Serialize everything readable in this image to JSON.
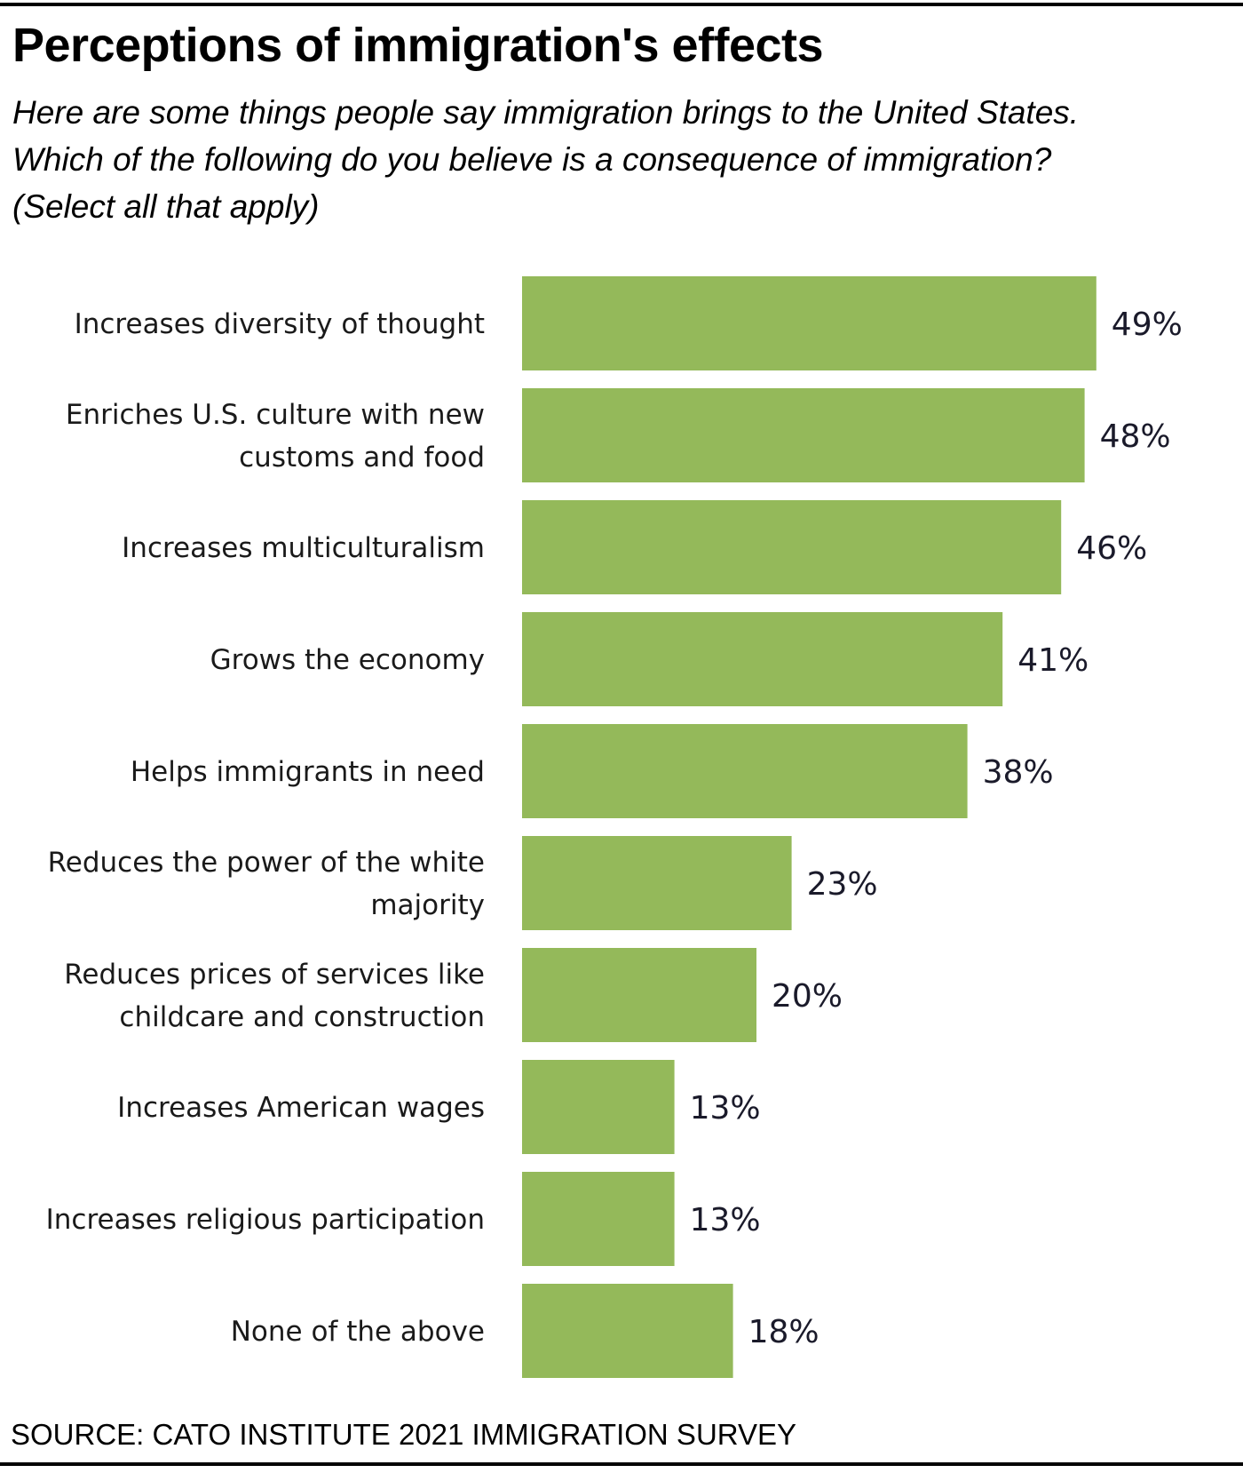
{
  "title": "Perceptions of immigration's effects",
  "subtitle_lines": [
    "Here are some things people say immigration brings to the United States.",
    "Which of the following do you believe is a consequence of immigration?",
    "(Select all that apply)"
  ],
  "source": "SOURCE: CATO INSTITUTE 2021 IMMIGRATION SURVEY",
  "colors": {
    "bar": "#94b95a",
    "text": "#1a1a1a"
  },
  "chart_data": {
    "type": "bar",
    "orientation": "horizontal",
    "title": "Perceptions of immigration's effects",
    "categories": [
      [
        "Increases diversity of thought"
      ],
      [
        "Enriches U.S. culture with new",
        "customs and food"
      ],
      [
        "Increases multiculturalism"
      ],
      [
        "Grows the economy"
      ],
      [
        "Helps immigrants in need"
      ],
      [
        "Reduces the power of the white",
        "majority"
      ],
      [
        "Reduces prices of services like",
        "childcare and construction"
      ],
      [
        "Increases American wages"
      ],
      [
        "Increases religious participation"
      ],
      [
        "None of the above"
      ]
    ],
    "values": [
      49,
      48,
      46,
      41,
      38,
      23,
      20,
      13,
      13,
      18
    ],
    "value_labels": [
      "49%",
      "48%",
      "46%",
      "41%",
      "38%",
      "23%",
      "20%",
      "13%",
      "13%",
      "18%"
    ],
    "unit": "%",
    "xlabel": "",
    "ylabel": "",
    "xlim": [
      0,
      50
    ],
    "grid": false,
    "legend": "none"
  }
}
